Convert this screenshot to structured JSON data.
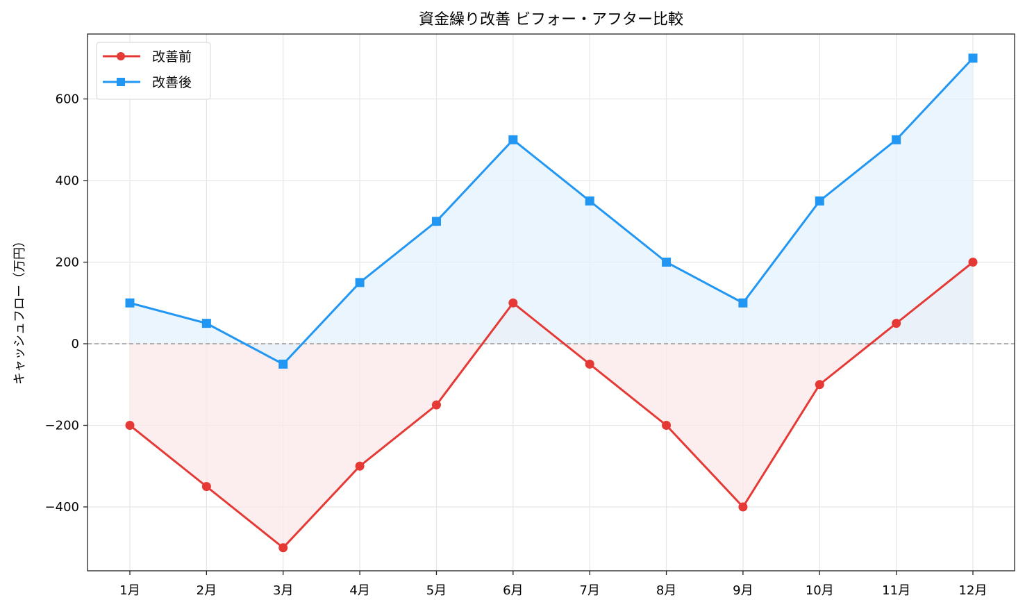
{
  "chart": {
    "title": "資金繰り改善 ビフォー・アフター比較",
    "ylabel": "キャッシュフロー（万円）",
    "legend": [
      {
        "label": "改善前",
        "color": "#e53935",
        "marker": "circle"
      },
      {
        "label": "改善後",
        "color": "#2196f3",
        "marker": "square"
      }
    ],
    "ytick_labels": [
      "600",
      "400",
      "200",
      "0",
      "−200",
      "−400"
    ]
  },
  "chart_data": {
    "type": "line",
    "title": "資金繰り改善 ビフォー・アフター比較",
    "xlabel": "",
    "ylabel": "キャッシュフロー（万円）",
    "categories": [
      "1月",
      "2月",
      "3月",
      "4月",
      "5月",
      "6月",
      "7月",
      "8月",
      "9月",
      "10月",
      "11月",
      "12月"
    ],
    "series": [
      {
        "name": "改善前",
        "color": "#e53935",
        "marker": "circle",
        "fill_to_zero": true,
        "fill_color": "#fbe7e8",
        "values": [
          -200,
          -350,
          -500,
          -300,
          -150,
          100,
          -50,
          -200,
          -400,
          -100,
          50,
          200
        ]
      },
      {
        "name": "改善後",
        "color": "#2196f3",
        "marker": "square",
        "fill_to_zero": true,
        "fill_color": "#e4f2fc",
        "values": [
          100,
          50,
          -50,
          150,
          300,
          500,
          350,
          200,
          100,
          350,
          500,
          700
        ]
      }
    ],
    "yticks": [
      -400,
      -200,
      0,
      200,
      400,
      600
    ],
    "ylim": [
      -560,
      760
    ],
    "grid": true,
    "zero_line": {
      "y": 0,
      "style": "dashed",
      "color": "#999999"
    },
    "legend_position": "upper left"
  }
}
